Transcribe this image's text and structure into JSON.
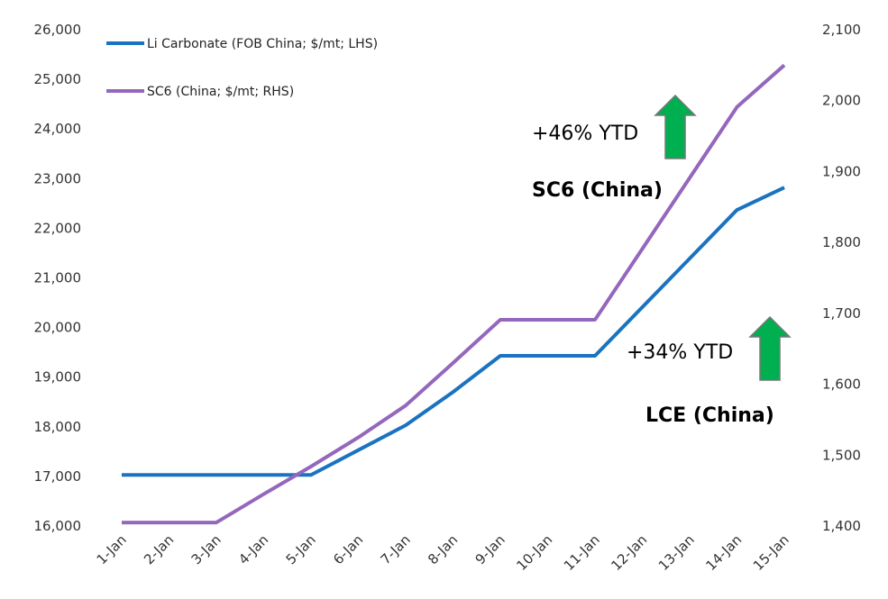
{
  "chart_data": {
    "type": "line",
    "title": "",
    "categories": [
      "1-Jan",
      "2-Jan",
      "3-Jan",
      "4-Jan",
      "5-Jan",
      "6-Jan",
      "7-Jan",
      "8-Jan",
      "9-Jan",
      "10-Jan",
      "11-Jan",
      "12-Jan",
      "13-Jan",
      "14-Jan",
      "15-Jan"
    ],
    "series": [
      {
        "name": "Li Carbonate (FOB China; $/mt; LHS)",
        "axis": "left",
        "color": "#1a73c0",
        "values": [
          17030,
          17030,
          17030,
          17030,
          17030,
          17530,
          18030,
          18700,
          19430,
          19430,
          19430,
          20410,
          21390,
          22370,
          22820
        ]
      },
      {
        "name": "SC6 (China; $/mt; RHS)",
        "axis": "right",
        "color": "#9467bd",
        "values": [
          1405,
          1405,
          1405,
          1445,
          1484,
          1525,
          1570,
          1630,
          1691,
          1691,
          1691,
          1791,
          1891,
          1991,
          2050
        ]
      }
    ],
    "y_left": {
      "range": [
        16000,
        26000
      ],
      "ticks": [
        "16,000",
        "17,000",
        "18,000",
        "19,000",
        "20,000",
        "21,000",
        "22,000",
        "23,000",
        "24,000",
        "25,000",
        "26,000"
      ]
    },
    "y_right": {
      "range": [
        1400,
        2100
      ],
      "ticks": [
        "1,400",
        "1,500",
        "1,600",
        "1,700",
        "1,800",
        "1,900",
        "2,000",
        "2,100"
      ]
    },
    "grid": false,
    "legend_position": "top-left",
    "annotations": [
      {
        "text": "+46% YTD",
        "style": "normal"
      },
      {
        "text": "SC6 (China)",
        "style": "bold"
      },
      {
        "text": "+34% YTD",
        "style": "normal"
      },
      {
        "text": "LCE (China)",
        "style": "bold"
      }
    ],
    "arrow_color": "#00b050"
  }
}
